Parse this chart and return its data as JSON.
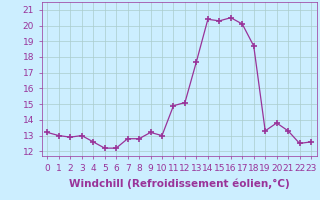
{
  "hours": [
    0,
    1,
    2,
    3,
    4,
    5,
    6,
    7,
    8,
    9,
    10,
    11,
    12,
    13,
    14,
    15,
    16,
    17,
    18,
    19,
    20,
    21,
    22,
    23
  ],
  "values": [
    13.2,
    13.0,
    12.9,
    13.0,
    12.6,
    12.2,
    12.2,
    12.8,
    12.8,
    13.2,
    13.0,
    14.9,
    15.1,
    17.7,
    20.4,
    20.3,
    20.5,
    20.1,
    18.7,
    13.3,
    13.8,
    13.3,
    12.5,
    12.6
  ],
  "line_color": "#993399",
  "marker": "+",
  "marker_size": 4,
  "bg_color": "#cceeff",
  "grid_color": "#aacccc",
  "xlabel": "Windchill (Refroidissement éolien,°C)",
  "ylim": [
    11.7,
    21.5
  ],
  "yticks": [
    12,
    13,
    14,
    15,
    16,
    17,
    18,
    19,
    20,
    21
  ],
  "xticks": [
    0,
    1,
    2,
    3,
    4,
    5,
    6,
    7,
    8,
    9,
    10,
    11,
    12,
    13,
    14,
    15,
    16,
    17,
    18,
    19,
    20,
    21,
    22,
    23
  ],
  "tick_label_fontsize": 6.5,
  "xlabel_fontsize": 7.5
}
